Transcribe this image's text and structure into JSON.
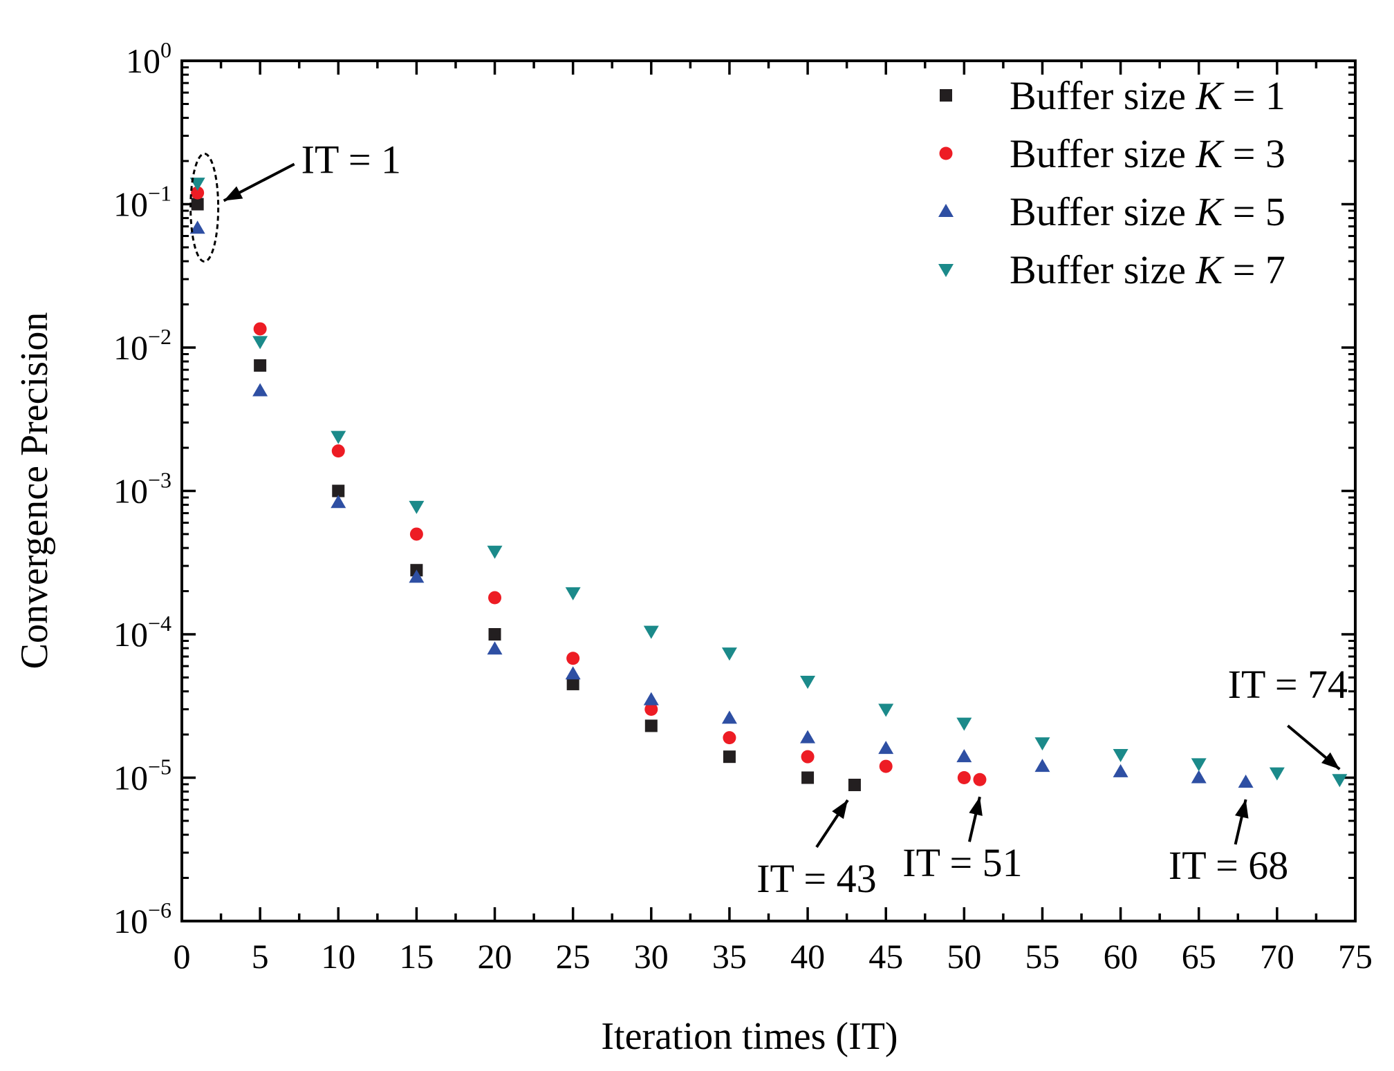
{
  "chart_data": {
    "type": "scatter",
    "title": "",
    "xlabel": "Iteration times (IT)",
    "ylabel": "Convergence Precision",
    "xlim": [
      0,
      75
    ],
    "ylim": [
      1e-06,
      1
    ],
    "yscale": "log",
    "x_ticks": [
      0,
      5,
      10,
      15,
      20,
      25,
      30,
      35,
      40,
      45,
      50,
      55,
      60,
      65,
      70,
      75
    ],
    "y_ticks": [
      {
        "base": "10",
        "exp": "0",
        "value": 1
      },
      {
        "base": "10",
        "exp": "−1",
        "value": 0.1
      },
      {
        "base": "10",
        "exp": "−2",
        "value": 0.01
      },
      {
        "base": "10",
        "exp": "−3",
        "value": 0.001
      },
      {
        "base": "10",
        "exp": "−4",
        "value": 0.0001
      },
      {
        "base": "10",
        "exp": "−5",
        "value": 1e-05
      },
      {
        "base": "10",
        "exp": "−6",
        "value": 1e-06
      }
    ],
    "legend_position": "top-right",
    "series": [
      {
        "name": "Buffer size K = 1",
        "label_prefix": "Buffer size ",
        "label_var": "K",
        "label_suffix": " = 1",
        "marker": "square",
        "color": "#231f20",
        "x": [
          1,
          5,
          10,
          15,
          20,
          25,
          30,
          35,
          40,
          43
        ],
        "y": [
          0.1,
          0.0075,
          0.001,
          0.00028,
          0.0001,
          4.5e-05,
          2.3e-05,
          1.4e-05,
          1e-05,
          8.9e-06
        ]
      },
      {
        "name": "Buffer size K = 3",
        "label_prefix": "Buffer size ",
        "label_var": "K",
        "label_suffix": " = 3",
        "marker": "circle",
        "color": "#ed1c24",
        "x": [
          1,
          5,
          10,
          15,
          20,
          25,
          30,
          35,
          40,
          45,
          50,
          51
        ],
        "y": [
          0.12,
          0.0135,
          0.0019,
          0.0005,
          0.00018,
          6.8e-05,
          3e-05,
          1.9e-05,
          1.4e-05,
          1.2e-05,
          1e-05,
          9.7e-06
        ]
      },
      {
        "name": "Buffer size K = 5",
        "label_prefix": "Buffer size ",
        "label_var": "K",
        "label_suffix": " = 5",
        "marker": "triangle-up",
        "color": "#2e4fa3",
        "x": [
          1,
          5,
          10,
          15,
          20,
          25,
          30,
          35,
          40,
          45,
          50,
          55,
          60,
          65,
          68
        ],
        "y": [
          0.068,
          0.005,
          0.00083,
          0.00025,
          7.9e-05,
          5.3e-05,
          3.5e-05,
          2.6e-05,
          1.9e-05,
          1.6e-05,
          1.4e-05,
          1.2e-05,
          1.1e-05,
          1e-05,
          9.3e-06
        ]
      },
      {
        "name": "Buffer size K = 7",
        "label_prefix": "Buffer size ",
        "label_var": "K",
        "label_suffix": " = 7",
        "marker": "triangle-down",
        "color": "#1b8a8a",
        "x": [
          1,
          5,
          10,
          15,
          20,
          25,
          30,
          35,
          40,
          45,
          50,
          55,
          60,
          65,
          70,
          74
        ],
        "y": [
          0.14,
          0.011,
          0.0024,
          0.00078,
          0.00038,
          0.000195,
          0.000105,
          7.4e-05,
          4.7e-05,
          3e-05,
          2.4e-05,
          1.75e-05,
          1.45e-05,
          1.25e-05,
          1.08e-05,
          9.7e-06
        ]
      }
    ],
    "annotations": [
      {
        "text": "IT = 1",
        "x": 1,
        "y": 0.1,
        "label_side": "upper-right",
        "highlight": "dashed-ellipse"
      },
      {
        "text": "IT = 43",
        "x": 43,
        "y": 8.9e-06,
        "label_side": "lower-left"
      },
      {
        "text": "IT = 51",
        "x": 51,
        "y": 9.7e-06,
        "label_side": "below"
      },
      {
        "text": "IT = 68",
        "x": 68,
        "y": 9.3e-06,
        "label_side": "below"
      },
      {
        "text": "IT = 74",
        "x": 74,
        "y": 9.7e-06,
        "label_side": "upper-left"
      }
    ]
  }
}
